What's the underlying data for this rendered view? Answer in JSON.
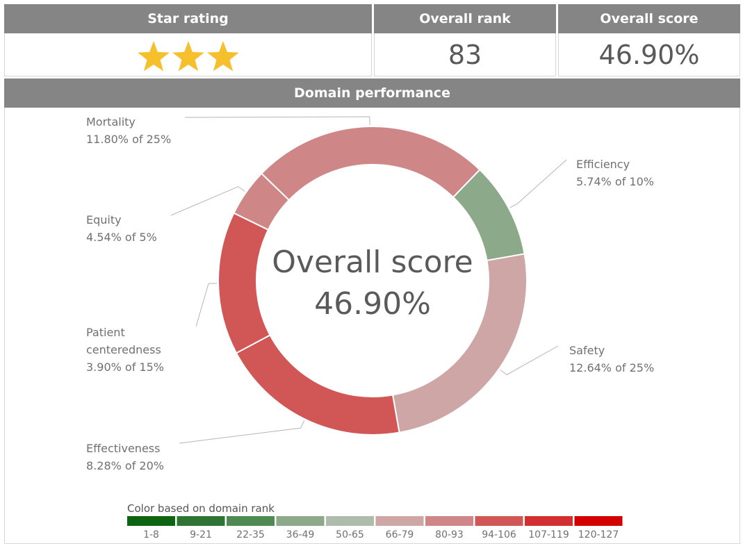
{
  "star_panel": {
    "title": "Star rating",
    "stars": 3,
    "star_color": "#f5c02b"
  },
  "rank_panel": {
    "title": "Overall rank",
    "value": "83"
  },
  "score_panel": {
    "title": "Overall score",
    "value": "46.90%"
  },
  "domain_panel": {
    "title": "Domain performance"
  },
  "chart_data": {
    "type": "donut",
    "center_label": [
      "Overall score",
      "46.90%"
    ],
    "slices": [
      {
        "name": "Efficiency",
        "label": "5.74% of 10%",
        "weight": 10,
        "color": "#8caa8a"
      },
      {
        "name": "Safety",
        "label": "12.64% of 25%",
        "weight": 25,
        "color": "#cfa6a6"
      },
      {
        "name": "Effectiveness",
        "label": "8.28% of 20%",
        "weight": 20,
        "color": "#d15656"
      },
      {
        "name": "Patient centeredness",
        "label": "3.90% of 15%",
        "weight": 15,
        "color": "#d15656"
      },
      {
        "name": "Equity",
        "label": "4.54% of 5%",
        "weight": 5,
        "color": "#cf8686"
      },
      {
        "name": "Mortality",
        "label": "11.80% of 25%",
        "weight": 25,
        "color": "#cf8686"
      }
    ],
    "legend": {
      "title": "Color based on domain rank",
      "items": [
        {
          "label": "1-8",
          "color": "#0d6310"
        },
        {
          "label": "9-21",
          "color": "#2f7434"
        },
        {
          "label": "22-35",
          "color": "#4e8a52"
        },
        {
          "label": "36-49",
          "color": "#8caa8a"
        },
        {
          "label": "50-65",
          "color": "#adbcab"
        },
        {
          "label": "66-79",
          "color": "#cfa6a6"
        },
        {
          "label": "80-93",
          "color": "#cf8686"
        },
        {
          "label": "94-106",
          "color": "#d15656"
        },
        {
          "label": "107-119",
          "color": "#d23030"
        },
        {
          "label": "120-127",
          "color": "#d40000"
        }
      ]
    }
  }
}
